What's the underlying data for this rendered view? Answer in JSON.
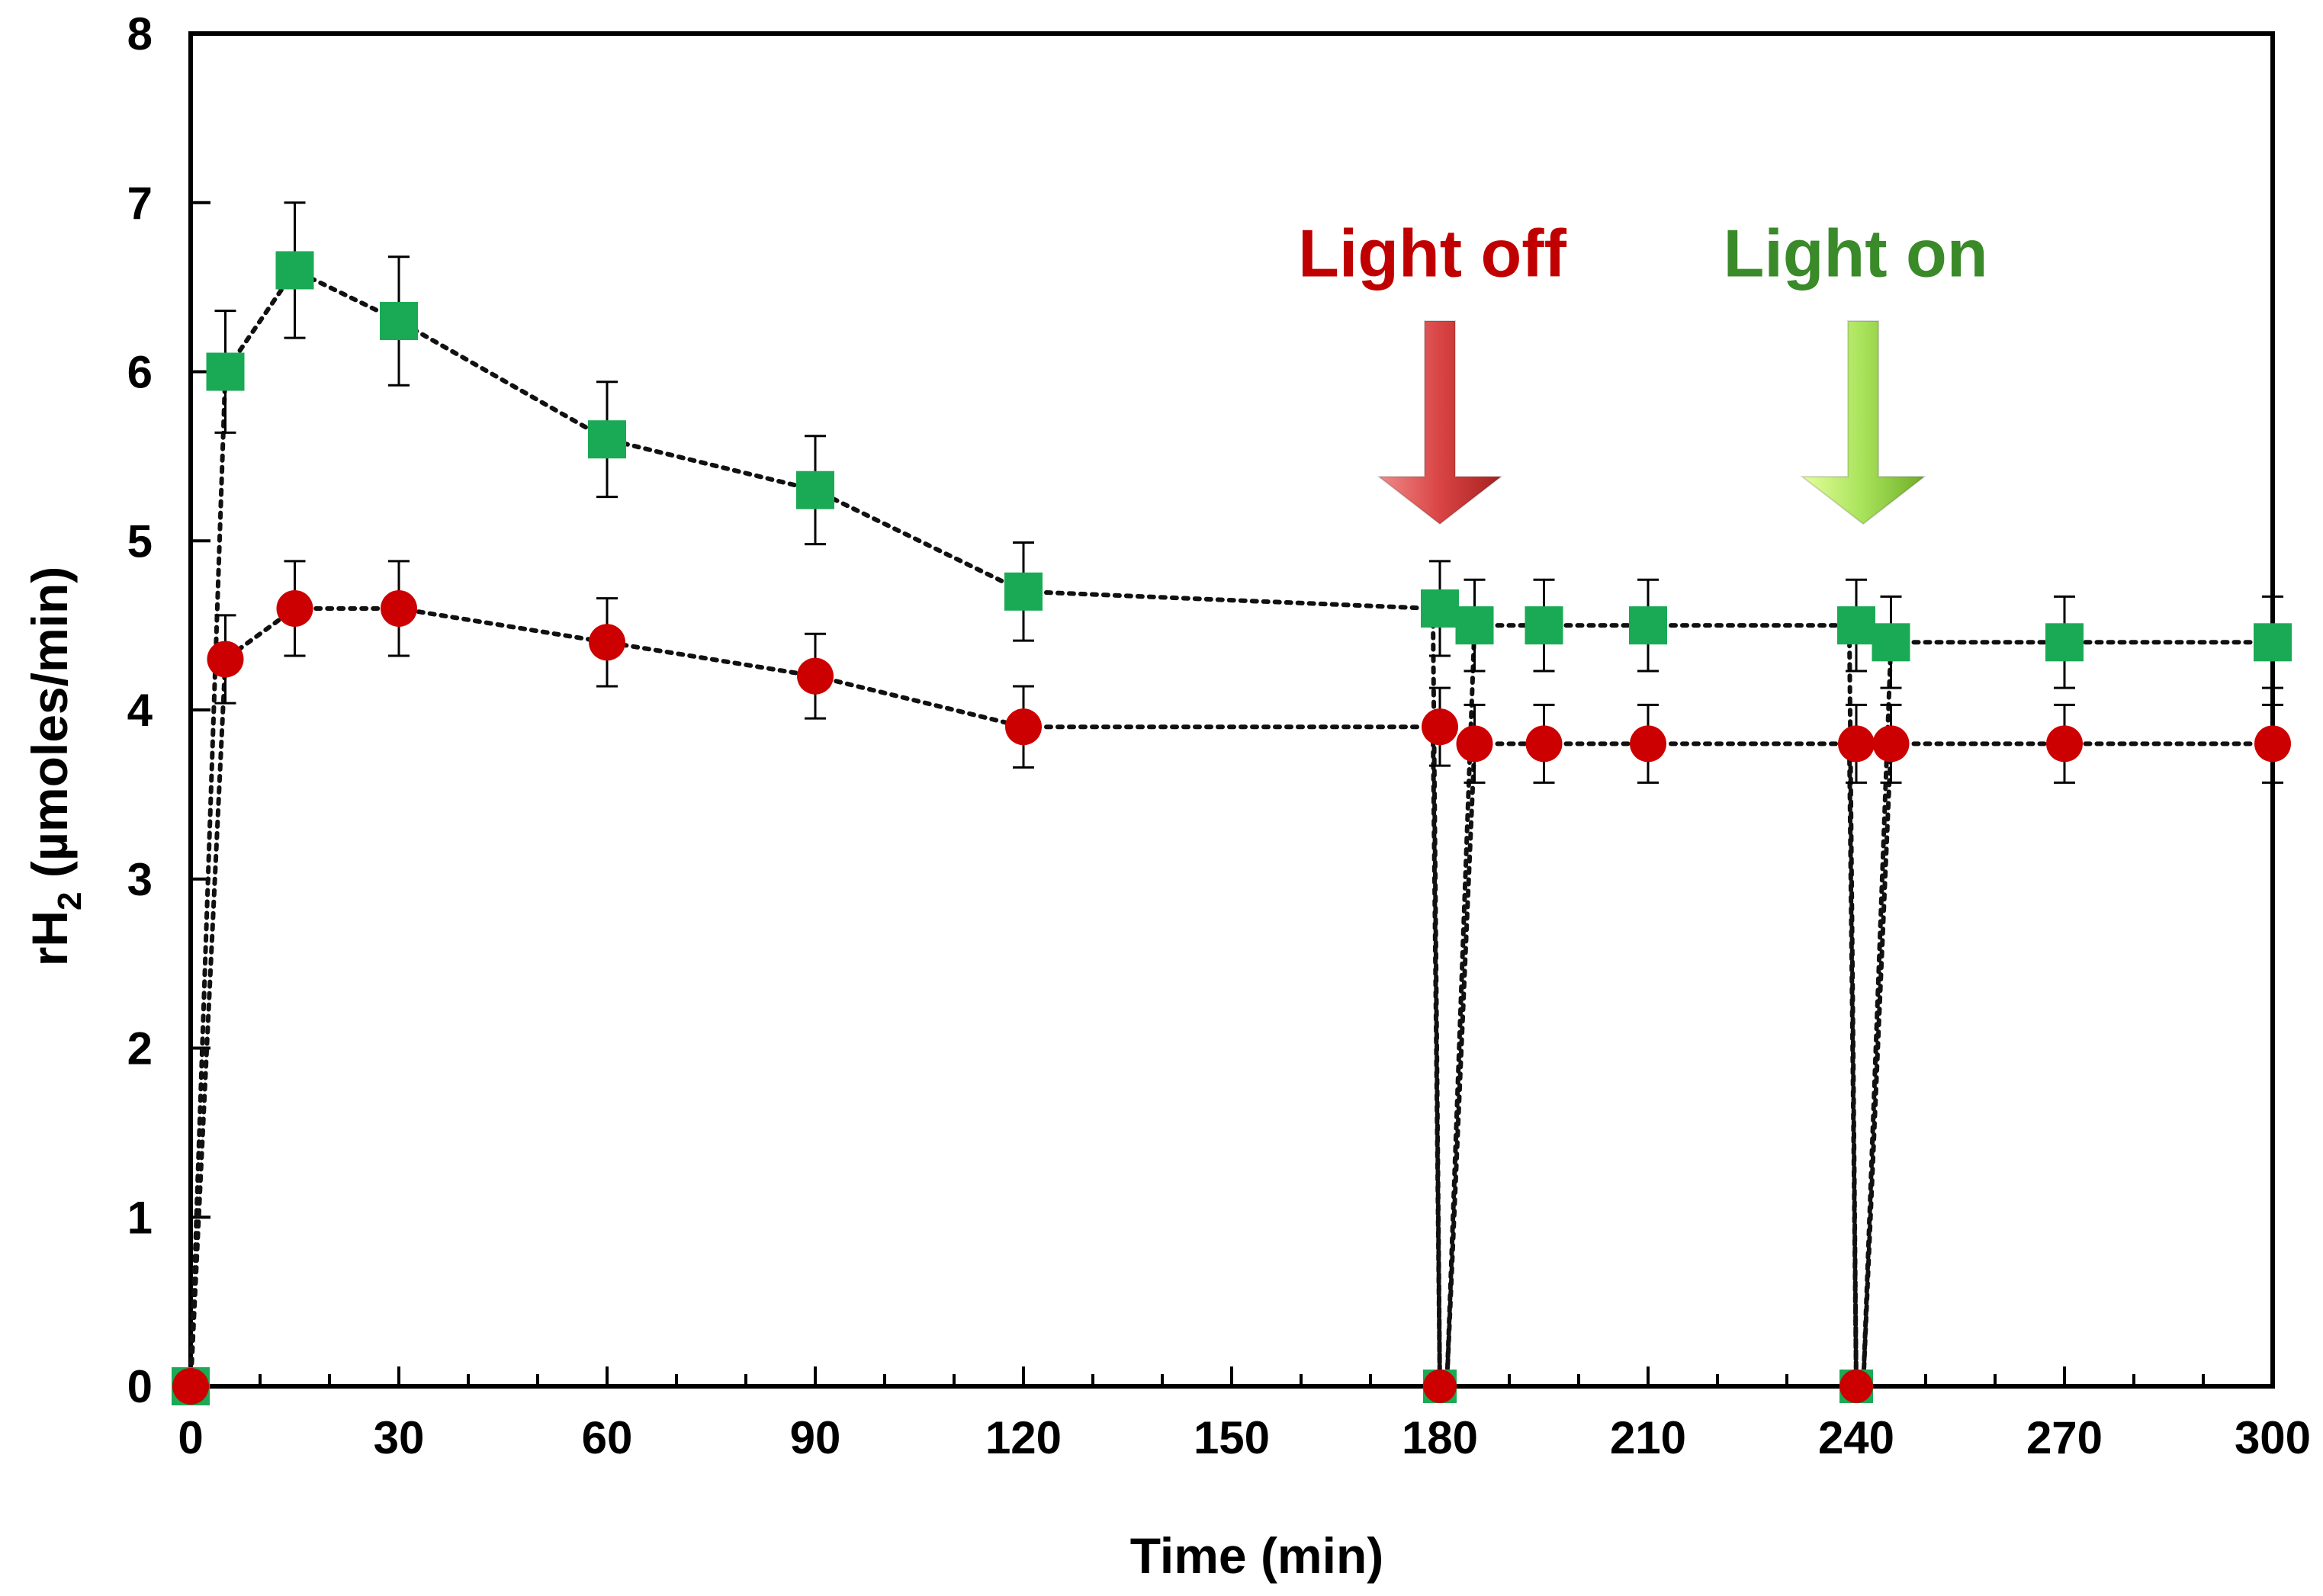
{
  "chart_data": {
    "type": "line",
    "title": "",
    "xlabel": "Time (min)",
    "ylabel_main": "rH",
    "ylabel_sub": "2",
    "ylabel_rest": " (µmoles/min)",
    "xlim": [
      0,
      300
    ],
    "ylim": [
      0,
      8
    ],
    "x_ticks": [
      0,
      30,
      60,
      90,
      120,
      150,
      180,
      210,
      240,
      270,
      300
    ],
    "x_minor_step": 10,
    "y_ticks": [
      0,
      1,
      2,
      3,
      4,
      5,
      6,
      7,
      8
    ],
    "x_tick_labels": [
      "0",
      "30",
      "60",
      "90",
      "120",
      "150",
      "180",
      "210",
      "240",
      "270",
      "300"
    ],
    "y_tick_labels": [
      "0",
      "1",
      "2",
      "3",
      "4",
      "5",
      "6",
      "7",
      "8"
    ],
    "grid": false,
    "legend": null,
    "series": [
      {
        "name": "green squares",
        "marker": "square",
        "color": "#1aaa55",
        "x": [
          0,
          5,
          15,
          30,
          60,
          90,
          120,
          180,
          185,
          195,
          210,
          240,
          245,
          270,
          300
        ],
        "y": [
          0,
          6.0,
          6.6,
          6.3,
          5.6,
          5.3,
          4.7,
          4.6,
          4.5,
          4.5,
          4.5,
          4.5,
          4.4,
          4.4,
          4.4
        ],
        "err": [
          0,
          0.36,
          0.4,
          0.38,
          0.34,
          0.32,
          0.29,
          0.28,
          0.27,
          0.27,
          0.27,
          0.27,
          0.27,
          0.27,
          0.27
        ]
      },
      {
        "name": "red circles",
        "marker": "circle",
        "color": "#cc0000",
        "x": [
          0,
          5,
          15,
          30,
          60,
          90,
          120,
          180,
          185,
          195,
          210,
          240,
          245,
          270,
          300
        ],
        "y": [
          0,
          4.3,
          4.6,
          4.6,
          4.4,
          4.2,
          3.9,
          3.9,
          3.8,
          3.8,
          3.8,
          3.8,
          3.8,
          3.8,
          3.8
        ],
        "err": [
          0,
          0.26,
          0.28,
          0.28,
          0.26,
          0.25,
          0.24,
          0.23,
          0.23,
          0.23,
          0.23,
          0.23,
          0.23,
          0.23,
          0.23
        ]
      }
    ],
    "line_segments": [
      {
        "name": "dip-green-180",
        "x": [
          120,
          179,
          180,
          181,
          185
        ],
        "y": [
          4.7,
          4.6,
          0,
          0,
          4.5
        ]
      },
      {
        "name": "dip-red-180",
        "x": [
          120,
          179,
          180,
          181,
          185
        ],
        "y": [
          3.9,
          3.9,
          0,
          0,
          3.8
        ]
      },
      {
        "name": "dip-green-240",
        "x": [
          210,
          239,
          240,
          241,
          245
        ],
        "y": [
          4.5,
          4.5,
          0,
          0,
          4.4
        ]
      },
      {
        "name": "dip-red-240",
        "x": [
          210,
          239,
          240,
          241,
          245
        ],
        "y": [
          3.8,
          3.8,
          0,
          0,
          3.8
        ]
      }
    ],
    "zero_markers": [
      {
        "x": 180,
        "y": 0
      },
      {
        "x": 240,
        "y": 0
      }
    ],
    "annotations": [
      {
        "name": "light-off",
        "text": "Light off",
        "color": "#c00000",
        "arrow_color": "#d94a4a",
        "x": 180,
        "text_y": 6.7,
        "arrow_top": 6.3,
        "arrow_bottom": 5.1
      },
      {
        "name": "light-on",
        "text": "Light on",
        "color": "#3a8a2a",
        "arrow_color": "#a8e25a",
        "x": 241,
        "text_y": 6.7,
        "arrow_top": 6.3,
        "arrow_bottom": 5.1
      }
    ]
  }
}
